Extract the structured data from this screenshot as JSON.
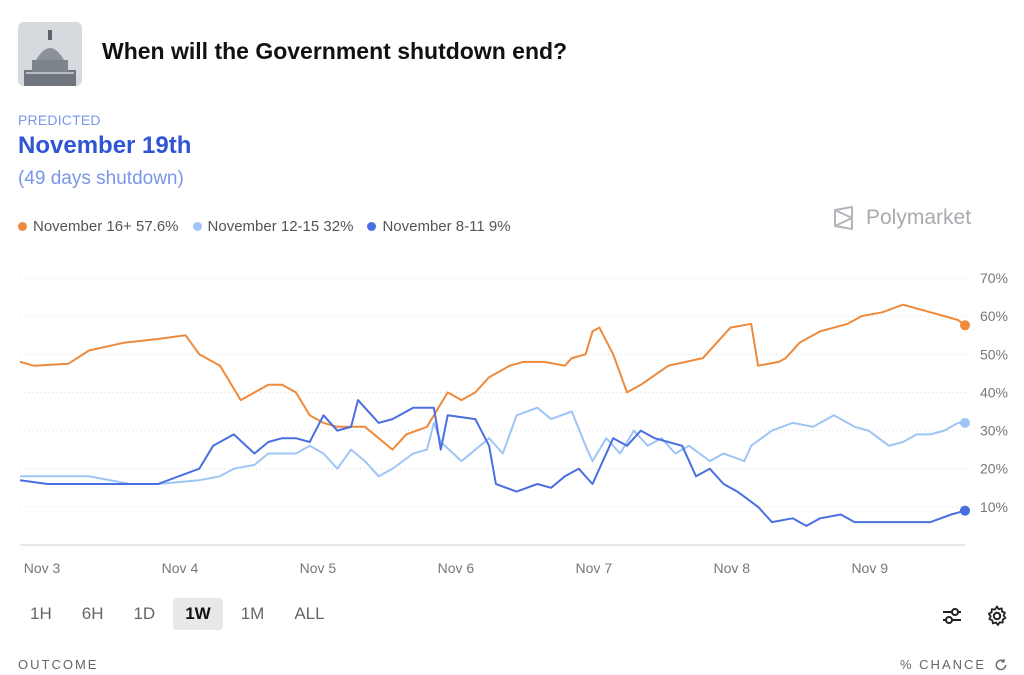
{
  "header": {
    "title": "When will the Government shutdown end?",
    "thumbnail_icon": "capitol-dome-icon"
  },
  "prediction": {
    "label": "PREDICTED",
    "value": "November 19th",
    "subtext": "(49 days shutdown)"
  },
  "brand": {
    "name": "Polymarket",
    "icon": "polymarket-logo-icon"
  },
  "legend": [
    {
      "label": "November 16+ 57.6%",
      "color": "#ee8a3c"
    },
    {
      "label": "November 12-15 32%",
      "color": "#9ec5f5"
    },
    {
      "label": "November 8-11 9%",
      "color": "#4a6fe0"
    }
  ],
  "chart_data": {
    "type": "line",
    "x_categories": [
      "Nov 3",
      "Nov 4",
      "Nov 5",
      "Nov 6",
      "Nov 7",
      "Nov 8",
      "Nov 9"
    ],
    "x_range": [
      0,
      6.85
    ],
    "y_ticks": [
      "10%",
      "20%",
      "30%",
      "40%",
      "50%",
      "60%",
      "70%"
    ],
    "ylim": [
      0,
      70
    ],
    "grid": true,
    "series": [
      {
        "name": "November 16+",
        "color": "#ee8a3c",
        "points": [
          [
            0,
            48
          ],
          [
            0.1,
            47
          ],
          [
            0.35,
            47.5
          ],
          [
            0.5,
            51
          ],
          [
            0.75,
            53
          ],
          [
            1,
            54
          ],
          [
            1.2,
            55
          ],
          [
            1.3,
            50
          ],
          [
            1.45,
            47
          ],
          [
            1.6,
            38
          ],
          [
            1.8,
            42
          ],
          [
            1.9,
            42
          ],
          [
            2.0,
            40
          ],
          [
            2.1,
            34
          ],
          [
            2.2,
            32
          ],
          [
            2.3,
            31
          ],
          [
            2.5,
            31
          ],
          [
            2.6,
            28
          ],
          [
            2.7,
            25
          ],
          [
            2.8,
            29
          ],
          [
            2.95,
            31
          ],
          [
            3.0,
            34
          ],
          [
            3.1,
            40
          ],
          [
            3.2,
            38
          ],
          [
            3.3,
            40
          ],
          [
            3.4,
            44
          ],
          [
            3.55,
            47
          ],
          [
            3.65,
            48
          ],
          [
            3.8,
            48
          ],
          [
            3.95,
            47
          ],
          [
            4.0,
            49
          ],
          [
            4.1,
            50
          ],
          [
            4.15,
            56
          ],
          [
            4.2,
            57
          ],
          [
            4.3,
            50
          ],
          [
            4.4,
            40
          ],
          [
            4.5,
            42
          ],
          [
            4.7,
            47
          ],
          [
            4.95,
            49
          ],
          [
            5.05,
            53
          ],
          [
            5.15,
            57
          ],
          [
            5.3,
            58
          ],
          [
            5.35,
            47
          ],
          [
            5.5,
            48
          ],
          [
            5.55,
            49
          ],
          [
            5.65,
            53
          ],
          [
            5.8,
            56
          ],
          [
            6.0,
            58
          ],
          [
            6.1,
            60
          ],
          [
            6.25,
            61
          ],
          [
            6.4,
            63
          ],
          [
            6.5,
            62
          ],
          [
            6.6,
            61
          ],
          [
            6.7,
            60
          ],
          [
            6.8,
            59
          ],
          [
            6.85,
            57.6
          ]
        ]
      },
      {
        "name": "November 12-15",
        "color": "#9ec5f5",
        "points": [
          [
            0,
            18
          ],
          [
            0.5,
            18
          ],
          [
            0.8,
            16
          ],
          [
            1.0,
            16
          ],
          [
            1.3,
            17
          ],
          [
            1.45,
            18
          ],
          [
            1.55,
            20
          ],
          [
            1.7,
            21
          ],
          [
            1.8,
            24
          ],
          [
            2.0,
            24
          ],
          [
            2.1,
            26
          ],
          [
            2.2,
            24
          ],
          [
            2.3,
            20
          ],
          [
            2.4,
            25
          ],
          [
            2.5,
            22
          ],
          [
            2.6,
            18
          ],
          [
            2.7,
            20
          ],
          [
            2.85,
            24
          ],
          [
            2.95,
            25
          ],
          [
            3.0,
            32
          ],
          [
            3.05,
            27
          ],
          [
            3.2,
            22
          ],
          [
            3.4,
            28
          ],
          [
            3.5,
            24
          ],
          [
            3.6,
            34
          ],
          [
            3.75,
            36
          ],
          [
            3.85,
            33
          ],
          [
            4.0,
            35
          ],
          [
            4.1,
            26
          ],
          [
            4.15,
            22
          ],
          [
            4.25,
            28
          ],
          [
            4.35,
            24
          ],
          [
            4.45,
            30
          ],
          [
            4.55,
            26
          ],
          [
            4.65,
            28
          ],
          [
            4.75,
            24
          ],
          [
            4.85,
            26
          ],
          [
            5.0,
            22
          ],
          [
            5.1,
            24
          ],
          [
            5.25,
            22
          ],
          [
            5.3,
            26
          ],
          [
            5.45,
            30
          ],
          [
            5.6,
            32
          ],
          [
            5.75,
            31
          ],
          [
            5.9,
            34
          ],
          [
            6.05,
            31
          ],
          [
            6.15,
            30
          ],
          [
            6.3,
            26
          ],
          [
            6.4,
            27
          ],
          [
            6.5,
            29
          ],
          [
            6.6,
            29
          ],
          [
            6.7,
            30
          ],
          [
            6.8,
            32
          ],
          [
            6.85,
            32
          ]
        ]
      },
      {
        "name": "November 8-11",
        "color": "#4a6fe0",
        "points": [
          [
            0,
            17
          ],
          [
            0.2,
            16
          ],
          [
            0.5,
            16
          ],
          [
            0.8,
            16
          ],
          [
            1.0,
            16
          ],
          [
            1.15,
            18
          ],
          [
            1.3,
            20
          ],
          [
            1.4,
            26
          ],
          [
            1.55,
            29
          ],
          [
            1.7,
            24
          ],
          [
            1.8,
            27
          ],
          [
            1.9,
            28
          ],
          [
            2.0,
            28
          ],
          [
            2.1,
            27
          ],
          [
            2.2,
            34
          ],
          [
            2.3,
            30
          ],
          [
            2.4,
            31
          ],
          [
            2.45,
            38
          ],
          [
            2.6,
            32
          ],
          [
            2.7,
            33
          ],
          [
            2.85,
            36
          ],
          [
            3.0,
            36
          ],
          [
            3.05,
            25
          ],
          [
            3.1,
            34
          ],
          [
            3.3,
            33
          ],
          [
            3.4,
            26
          ],
          [
            3.45,
            16
          ],
          [
            3.6,
            14
          ],
          [
            3.75,
            16
          ],
          [
            3.85,
            15
          ],
          [
            3.95,
            18
          ],
          [
            4.05,
            20
          ],
          [
            4.15,
            16
          ],
          [
            4.2,
            20
          ],
          [
            4.3,
            28
          ],
          [
            4.4,
            26
          ],
          [
            4.5,
            30
          ],
          [
            4.6,
            28
          ],
          [
            4.7,
            27
          ],
          [
            4.8,
            26
          ],
          [
            4.9,
            18
          ],
          [
            5.0,
            20
          ],
          [
            5.1,
            16
          ],
          [
            5.2,
            14
          ],
          [
            5.35,
            10
          ],
          [
            5.45,
            6
          ],
          [
            5.6,
            7
          ],
          [
            5.7,
            5
          ],
          [
            5.8,
            7
          ],
          [
            5.95,
            8
          ],
          [
            6.05,
            6
          ],
          [
            6.2,
            6
          ],
          [
            6.4,
            6
          ],
          [
            6.6,
            6
          ],
          [
            6.75,
            8
          ],
          [
            6.85,
            9
          ]
        ]
      }
    ]
  },
  "time_tabs": {
    "items": [
      "1H",
      "6H",
      "1D",
      "1W",
      "1M",
      "ALL"
    ],
    "selected": "1W"
  },
  "toolbar": {
    "filter_icon": "sliders-icon",
    "settings_icon": "gear-icon"
  },
  "footer": {
    "left": "OUTCOME",
    "right": "% CHANCE",
    "right_icon": "refresh-icon"
  }
}
